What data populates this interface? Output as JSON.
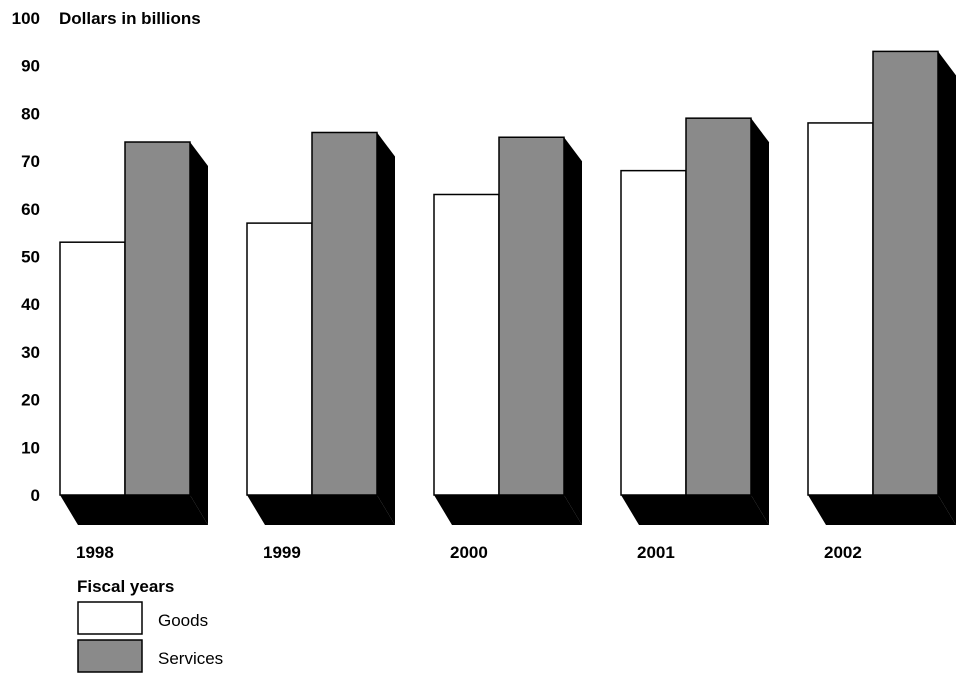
{
  "chart_data": {
    "type": "bar",
    "ylabel": "Dollars in billions",
    "xlabel": "Fiscal years",
    "categories": [
      "1998",
      "1999",
      "2000",
      "2001",
      "2002"
    ],
    "series": [
      {
        "name": "Goods",
        "values": [
          53,
          57,
          63,
          68,
          78
        ],
        "color": "#ffffff"
      },
      {
        "name": "Services",
        "values": [
          74,
          76,
          75,
          79,
          93
        ],
        "color": "#8a8a8a"
      }
    ],
    "ylim": [
      0,
      100
    ],
    "yticks": [
      "0",
      "10",
      "20",
      "30",
      "40",
      "50",
      "60",
      "70",
      "80",
      "90",
      "100"
    ],
    "grid": false,
    "legend": "bottom-left",
    "shadow_color": "#000000",
    "outline_color": "#000000"
  }
}
